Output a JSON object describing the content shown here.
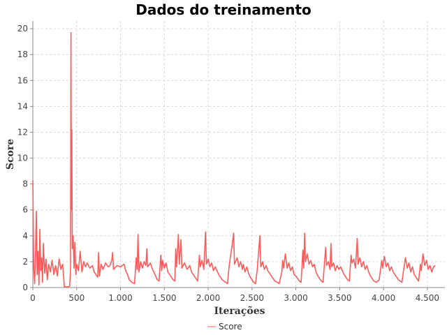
{
  "chart_data": {
    "type": "line",
    "title": "Dados do treinamento",
    "xlabel": "Iterações",
    "ylabel": "Score",
    "xlim": [
      0,
      4700
    ],
    "ylim": [
      0,
      20.6
    ],
    "x_ticks": [
      0,
      500,
      1000,
      1500,
      2000,
      2500,
      3000,
      3500,
      4000,
      4500
    ],
    "x_tick_labels": [
      "0",
      "500",
      "1.000",
      "1.500",
      "2.000",
      "2.500",
      "3.000",
      "3.500",
      "4.000",
      "4.500"
    ],
    "y_ticks": [
      0,
      2,
      4,
      6,
      8,
      10,
      12,
      14,
      16,
      18,
      20
    ],
    "y_tick_labels": [
      "0",
      "2",
      "4",
      "6",
      "8",
      "10",
      "12",
      "14",
      "16",
      "18",
      "20"
    ],
    "grid": true,
    "legend_position": "bottom",
    "series": [
      {
        "name": "Score",
        "color": "#ff5a5a",
        "points": [
          [
            0,
            8.3
          ],
          [
            10,
            1.5
          ],
          [
            20,
            0.3
          ],
          [
            30,
            2.5
          ],
          [
            40,
            5.9
          ],
          [
            50,
            1.0
          ],
          [
            60,
            2.8
          ],
          [
            70,
            0.2
          ],
          [
            80,
            4.5
          ],
          [
            90,
            1.3
          ],
          [
            100,
            2.3
          ],
          [
            110,
            0.4
          ],
          [
            120,
            3.4
          ],
          [
            135,
            1.1
          ],
          [
            150,
            2.2
          ],
          [
            165,
            0.6
          ],
          [
            180,
            1.8
          ],
          [
            200,
            1.2
          ],
          [
            220,
            2.1
          ],
          [
            240,
            1.0
          ],
          [
            260,
            1.7
          ],
          [
            280,
            0.9
          ],
          [
            300,
            2.2
          ],
          [
            320,
            1.4
          ],
          [
            340,
            1.8
          ],
          [
            360,
            0.05
          ],
          [
            380,
            0.05
          ],
          [
            400,
            0.05
          ],
          [
            420,
            0.1
          ],
          [
            430,
            1.3
          ],
          [
            435,
            19.7
          ],
          [
            440,
            6.0
          ],
          [
            445,
            12.2
          ],
          [
            450,
            3.0
          ],
          [
            460,
            4.0
          ],
          [
            470,
            1.5
          ],
          [
            480,
            3.5
          ],
          [
            490,
            1.0
          ],
          [
            500,
            1.8
          ],
          [
            520,
            1.3
          ],
          [
            540,
            2.8
          ],
          [
            560,
            1.2
          ],
          [
            580,
            2.0
          ],
          [
            600,
            1.6
          ],
          [
            620,
            1.9
          ],
          [
            650,
            1.5
          ],
          [
            680,
            1.7
          ],
          [
            700,
            1.2
          ],
          [
            720,
            1.0
          ],
          [
            740,
            0.8
          ],
          [
            750,
            2.7
          ],
          [
            760,
            0.9
          ],
          [
            780,
            1.8
          ],
          [
            800,
            1.4
          ],
          [
            830,
            1.9
          ],
          [
            860,
            1.6
          ],
          [
            880,
            1.7
          ],
          [
            900,
            2.1
          ],
          [
            910,
            2.7
          ],
          [
            920,
            1.4
          ],
          [
            960,
            1.7
          ],
          [
            1000,
            1.6
          ],
          [
            1040,
            1.8
          ],
          [
            1060,
            1.3
          ],
          [
            1080,
            1.0
          ],
          [
            1100,
            0.6
          ],
          [
            1130,
            0.4
          ],
          [
            1160,
            0.3
          ],
          [
            1180,
            2.3
          ],
          [
            1190,
            1.4
          ],
          [
            1200,
            4.1
          ],
          [
            1210,
            1.2
          ],
          [
            1230,
            2.0
          ],
          [
            1250,
            1.5
          ],
          [
            1270,
            2.0
          ],
          [
            1290,
            1.7
          ],
          [
            1300,
            3.0
          ],
          [
            1310,
            1.6
          ],
          [
            1340,
            1.9
          ],
          [
            1360,
            1.5
          ],
          [
            1380,
            1.2
          ],
          [
            1400,
            0.9
          ],
          [
            1420,
            0.6
          ],
          [
            1440,
            0.5
          ],
          [
            1460,
            2.5
          ],
          [
            1470,
            1.3
          ],
          [
            1480,
            2.1
          ],
          [
            1500,
            1.5
          ],
          [
            1520,
            1.9
          ],
          [
            1540,
            1.2
          ],
          [
            1560,
            1.0
          ],
          [
            1580,
            0.8
          ],
          [
            1600,
            0.6
          ],
          [
            1620,
            0.5
          ],
          [
            1630,
            3.0
          ],
          [
            1640,
            1.6
          ],
          [
            1660,
            4.1
          ],
          [
            1670,
            1.8
          ],
          [
            1690,
            3.7
          ],
          [
            1700,
            1.5
          ],
          [
            1730,
            1.9
          ],
          [
            1760,
            1.4
          ],
          [
            1790,
            1.7
          ],
          [
            1810,
            1.2
          ],
          [
            1830,
            1.0
          ],
          [
            1860,
            0.7
          ],
          [
            1880,
            0.5
          ],
          [
            1900,
            2.5
          ],
          [
            1910,
            1.6
          ],
          [
            1930,
            2.1
          ],
          [
            1950,
            1.4
          ],
          [
            1970,
            4.3
          ],
          [
            1980,
            1.8
          ],
          [
            2000,
            2.2
          ],
          [
            2020,
            1.6
          ],
          [
            2040,
            1.9
          ],
          [
            2060,
            1.3
          ],
          [
            2080,
            1.6
          ],
          [
            2100,
            1.3
          ],
          [
            2120,
            1.0
          ],
          [
            2140,
            0.8
          ],
          [
            2160,
            0.6
          ],
          [
            2180,
            0.5
          ],
          [
            2200,
            0.4
          ],
          [
            2220,
            0.3
          ],
          [
            2240,
            1.7
          ],
          [
            2250,
            2.2
          ],
          [
            2270,
            3.1
          ],
          [
            2290,
            4.2
          ],
          [
            2300,
            1.8
          ],
          [
            2330,
            2.3
          ],
          [
            2350,
            1.6
          ],
          [
            2370,
            2.0
          ],
          [
            2390,
            1.4
          ],
          [
            2400,
            1.8
          ],
          [
            2420,
            1.2
          ],
          [
            2440,
            1.6
          ],
          [
            2460,
            1.1
          ],
          [
            2480,
            0.8
          ],
          [
            2500,
            0.6
          ],
          [
            2520,
            0.4
          ],
          [
            2540,
            0.3
          ],
          [
            2560,
            1.4
          ],
          [
            2570,
            2.3
          ],
          [
            2590,
            4.0
          ],
          [
            2600,
            1.6
          ],
          [
            2620,
            2.0
          ],
          [
            2640,
            1.4
          ],
          [
            2660,
            1.7
          ],
          [
            2680,
            1.3
          ],
          [
            2700,
            1.1
          ],
          [
            2720,
            0.9
          ],
          [
            2740,
            0.7
          ],
          [
            2760,
            0.5
          ],
          [
            2790,
            0.4
          ],
          [
            2810,
            0.3
          ],
          [
            2840,
            1.2
          ],
          [
            2850,
            2.1
          ],
          [
            2860,
            1.5
          ],
          [
            2880,
            2.6
          ],
          [
            2900,
            1.5
          ],
          [
            2920,
            1.9
          ],
          [
            2940,
            1.3
          ],
          [
            2960,
            1.6
          ],
          [
            2980,
            1.0
          ],
          [
            3000,
            0.9
          ],
          [
            3020,
            0.7
          ],
          [
            3040,
            0.5
          ],
          [
            3060,
            0.4
          ],
          [
            3080,
            2.9
          ],
          [
            3090,
            1.5
          ],
          [
            3100,
            4.2
          ],
          [
            3110,
            2.0
          ],
          [
            3130,
            2.6
          ],
          [
            3150,
            1.8
          ],
          [
            3170,
            2.1
          ],
          [
            3190,
            1.6
          ],
          [
            3210,
            1.8
          ],
          [
            3230,
            1.2
          ],
          [
            3250,
            0.9
          ],
          [
            3270,
            0.7
          ],
          [
            3290,
            0.5
          ],
          [
            3310,
            0.4
          ],
          [
            3340,
            3.1
          ],
          [
            3350,
            1.7
          ],
          [
            3370,
            2.0
          ],
          [
            3390,
            1.4
          ],
          [
            3400,
            3.4
          ],
          [
            3410,
            1.6
          ],
          [
            3430,
            1.9
          ],
          [
            3450,
            1.3
          ],
          [
            3470,
            1.7
          ],
          [
            3490,
            1.4
          ],
          [
            3510,
            1.6
          ],
          [
            3530,
            1.3
          ],
          [
            3550,
            1.0
          ],
          [
            3570,
            0.8
          ],
          [
            3590,
            0.6
          ],
          [
            3610,
            0.5
          ],
          [
            3630,
            2.5
          ],
          [
            3640,
            1.9
          ],
          [
            3660,
            2.2
          ],
          [
            3680,
            1.5
          ],
          [
            3700,
            3.8
          ],
          [
            3710,
            1.8
          ],
          [
            3730,
            2.3
          ],
          [
            3750,
            1.6
          ],
          [
            3770,
            2.0
          ],
          [
            3790,
            1.4
          ],
          [
            3810,
            1.7
          ],
          [
            3830,
            1.2
          ],
          [
            3850,
            0.9
          ],
          [
            3870,
            0.7
          ],
          [
            3890,
            0.5
          ],
          [
            3920,
            0.4
          ],
          [
            3950,
            0.6
          ],
          [
            3980,
            2.1
          ],
          [
            3990,
            1.5
          ],
          [
            4010,
            2.4
          ],
          [
            4030,
            1.6
          ],
          [
            4050,
            1.9
          ],
          [
            4070,
            1.3
          ],
          [
            4090,
            1.6
          ],
          [
            4110,
            1.2
          ],
          [
            4130,
            1.0
          ],
          [
            4150,
            0.8
          ],
          [
            4170,
            0.6
          ],
          [
            4190,
            0.5
          ],
          [
            4210,
            0.4
          ],
          [
            4230,
            1.4
          ],
          [
            4250,
            2.3
          ],
          [
            4270,
            1.5
          ],
          [
            4290,
            1.9
          ],
          [
            4310,
            1.2
          ],
          [
            4330,
            1.6
          ],
          [
            4350,
            1.0
          ],
          [
            4370,
            0.8
          ],
          [
            4390,
            0.6
          ],
          [
            4400,
            0.5
          ],
          [
            4420,
            1.8
          ],
          [
            4430,
            1.3
          ],
          [
            4450,
            2.6
          ],
          [
            4470,
            1.7
          ],
          [
            4490,
            2.1
          ],
          [
            4510,
            1.4
          ],
          [
            4530,
            1.7
          ],
          [
            4550,
            1.2
          ],
          [
            4570,
            1.6
          ],
          [
            4590,
            1.7
          ]
        ]
      }
    ]
  }
}
